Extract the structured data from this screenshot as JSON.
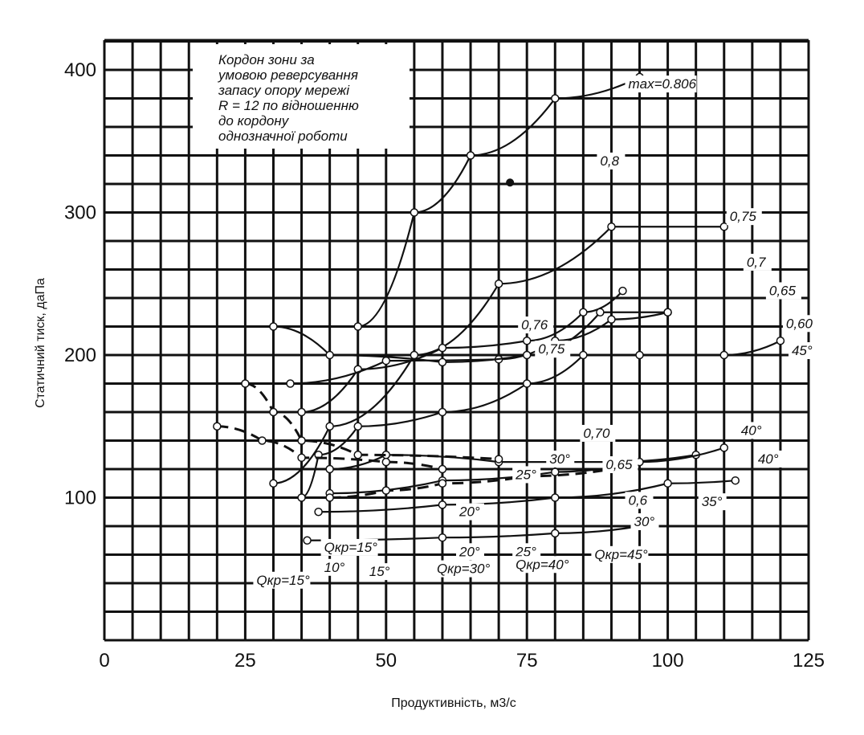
{
  "chart_data": {
    "type": "line",
    "xlabel": "Продуктивність, м3/с",
    "ylabel": "Статичний тиск, даПа",
    "xlim": [
      0,
      125
    ],
    "ylim": [
      0,
      400
    ],
    "x_ticks": [
      "0",
      "25",
      "50",
      "75",
      "100",
      "125"
    ],
    "y_ticks": [
      "100",
      "200",
      "300",
      "400"
    ],
    "grid": true,
    "annotation": "Кордон зони за умовою реверсування запасу опору мережі R = 12 по відношенню до кордону однозначної роботи",
    "efficiency_labels": [
      {
        "text": "max=0.806",
        "x": 93,
        "y": 387
      },
      {
        "text": "0,8",
        "x": 88,
        "y": 333
      },
      {
        "text": "0,75",
        "x": 111,
        "y": 294
      },
      {
        "text": "0,7",
        "x": 114,
        "y": 262
      },
      {
        "text": "0,65",
        "x": 118,
        "y": 242
      },
      {
        "text": "0,60",
        "x": 121,
        "y": 219
      },
      {
        "text": "0,76",
        "x": 74,
        "y": 218
      },
      {
        "text": "0,75",
        "x": 77,
        "y": 201
      },
      {
        "text": "0,70",
        "x": 85,
        "y": 142
      },
      {
        "text": "0,65",
        "x": 89,
        "y": 120
      },
      {
        "text": "0,6",
        "x": 93,
        "y": 95
      },
      {
        "text": "max=0.806",
        "x": 72,
        "y": 321,
        "marker": true
      }
    ],
    "angle_labels": [
      {
        "text": "45°",
        "x": 122,
        "y": 200
      },
      {
        "text": "40°",
        "x": 113,
        "y": 144
      },
      {
        "text": "40°",
        "x": 116,
        "y": 124
      },
      {
        "text": "35°",
        "x": 106,
        "y": 94
      },
      {
        "text": "30°",
        "x": 94,
        "y": 80
      },
      {
        "text": "30°",
        "x": 79,
        "y": 124
      },
      {
        "text": "25°",
        "x": 73,
        "y": 113
      },
      {
        "text": "20°",
        "x": 63,
        "y": 87
      },
      {
        "text": "20°",
        "x": 63,
        "y": 59
      },
      {
        "text": "25°",
        "x": 73,
        "y": 59
      },
      {
        "text": "10°",
        "x": 39,
        "y": 48
      },
      {
        "text": "15°",
        "x": 47,
        "y": 45
      }
    ],
    "qkr_labels": [
      {
        "text": "Qкр=15°",
        "x": 39,
        "y": 62
      },
      {
        "text": "Qкр=15°",
        "x": 27,
        "y": 39
      },
      {
        "text": "Qкр=30°",
        "x": 59,
        "y": 47
      },
      {
        "text": "Qкр=40°",
        "x": 73,
        "y": 50
      },
      {
        "text": "Qкр=45°",
        "x": 87,
        "y": 57
      }
    ],
    "series": [
      {
        "values": [
          [
            35,
            100
          ],
          [
            38,
            130
          ],
          [
            45,
            150
          ],
          [
            60,
            160
          ],
          [
            75,
            180
          ],
          [
            85,
            200
          ],
          [
            95,
            200
          ],
          [
            110,
            200
          ],
          [
            120,
            210
          ]
        ]
      },
      {
        "values": [
          [
            30,
            110
          ],
          [
            40,
            150
          ],
          [
            55,
            200
          ],
          [
            70,
            250
          ],
          [
            90,
            290
          ],
          [
            110,
            290
          ]
        ]
      },
      {
        "values": [
          [
            45,
            220
          ],
          [
            55,
            300
          ],
          [
            65,
            340
          ],
          [
            80,
            380
          ],
          [
            95,
            395
          ]
        ]
      },
      {
        "values": [
          [
            35,
            160
          ],
          [
            45,
            190
          ],
          [
            60,
            205
          ],
          [
            75,
            210
          ],
          [
            85,
            230
          ],
          [
            92,
            245
          ]
        ]
      },
      {
        "values": [
          [
            33,
            180
          ],
          [
            50,
            196
          ],
          [
            70,
            197
          ],
          [
            80,
            210
          ],
          [
            90,
            225
          ],
          [
            100,
            230
          ]
        ]
      },
      {
        "values": [
          [
            30,
            220
          ],
          [
            40,
            200
          ],
          [
            60,
            195
          ],
          [
            75,
            200
          ],
          [
            88,
            230
          ],
          [
            100,
            230
          ]
        ]
      },
      {
        "values": [
          [
            40,
            120
          ],
          [
            50,
            130
          ],
          [
            70,
            125
          ],
          [
            90,
            125
          ],
          [
            105,
            130
          ]
        ]
      },
      {
        "values": [
          [
            40,
            103
          ],
          [
            60,
            112
          ],
          [
            80,
            118
          ],
          [
            95,
            125
          ],
          [
            110,
            135
          ]
        ]
      },
      {
        "values": [
          [
            38,
            90
          ],
          [
            60,
            95
          ],
          [
            80,
            100
          ],
          [
            100,
            110
          ],
          [
            112,
            112
          ]
        ]
      },
      {
        "values": [
          [
            36,
            70
          ],
          [
            60,
            72
          ],
          [
            80,
            75
          ],
          [
            95,
            80
          ]
        ]
      },
      {
        "values": [
          [
            25,
            180
          ],
          [
            30,
            160
          ],
          [
            35,
            140
          ],
          [
            45,
            130
          ],
          [
            70,
            127
          ]
        ]
      },
      {
        "values": [
          [
            20,
            150
          ],
          [
            28,
            140
          ],
          [
            35,
            128
          ],
          [
            50,
            125
          ],
          [
            60,
            120
          ]
        ]
      },
      {
        "values": [
          [
            40,
            100
          ],
          [
            50,
            105
          ],
          [
            60,
            110
          ],
          [
            75,
            115
          ],
          [
            90,
            120
          ]
        ]
      }
    ],
    "y_gridlines_every": 20,
    "x_gridlines_every": 5
  }
}
